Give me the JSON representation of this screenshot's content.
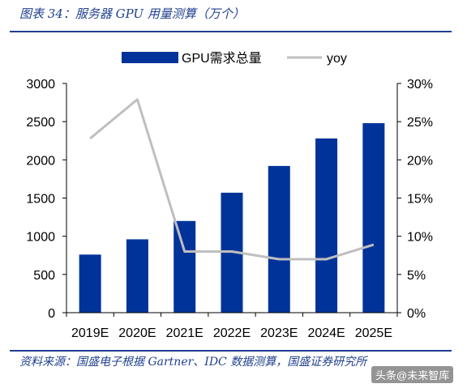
{
  "header": {
    "title": "图表 34：服务器 GPU 用量测算（万个）"
  },
  "footer": {
    "source": "资料来源：国盛电子根据 Gartner、IDC 数据测算，国盛证券研究所",
    "watermark": "头条@未来智库"
  },
  "colors": {
    "bar": "#003399",
    "line": "#bfbfbf",
    "accent": "#1f3f8f"
  },
  "chart_data": {
    "type": "bar",
    "categories": [
      "2019E",
      "2020E",
      "2021E",
      "2022E",
      "2023E",
      "2024E",
      "2025E"
    ],
    "series": [
      {
        "name": "GPU需求总量",
        "type": "bar",
        "axis": "left",
        "values": [
          760,
          960,
          1200,
          1570,
          1920,
          2280,
          2480
        ]
      },
      {
        "name": "yoy",
        "type": "line",
        "axis": "right",
        "values": [
          22.8,
          27.9,
          8.0,
          8.0,
          7.0,
          7.0,
          8.9
        ]
      }
    ],
    "y_left": {
      "min": 0,
      "max": 3000,
      "ticks": [
        "0",
        "500",
        "1000",
        "1500",
        "2000",
        "2500",
        "3000"
      ]
    },
    "y_right": {
      "min": 0,
      "max": 30,
      "ticks": [
        "0%",
        "5%",
        "10%",
        "15%",
        "20%",
        "25%",
        "30%"
      ]
    },
    "legend_position": "top",
    "grid": false
  }
}
